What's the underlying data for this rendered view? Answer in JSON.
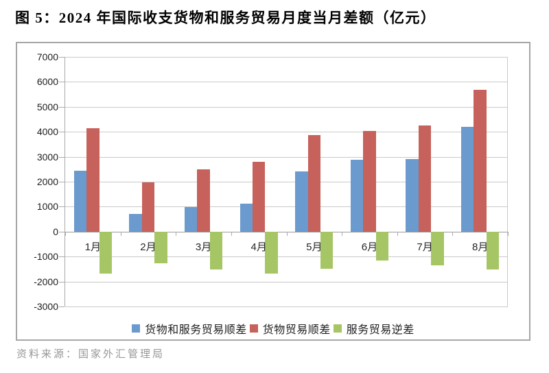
{
  "title": "图 5：2024 年国际收支货物和服务贸易月度当月差额（亿元）",
  "source": "资料来源：国家外汇管理局",
  "chart_data": {
    "type": "bar",
    "title": "图 5：2024 年国际收支货物和服务贸易月度当月差额（亿元）",
    "categories": [
      "1月",
      "2月",
      "3月",
      "4月",
      "5月",
      "6月",
      "7月",
      "8月"
    ],
    "series": [
      {
        "name": "货物和服务贸易顺差",
        "color": "#6a9ace",
        "values": [
          2446,
          720,
          985,
          1109,
          2399,
          2867,
          2911,
          4185
        ]
      },
      {
        "name": "货物贸易顺差",
        "color": "#c6615c",
        "values": [
          4130,
          1982,
          2492,
          2803,
          3881,
          4040,
          4259,
          5691
        ]
      },
      {
        "name": "服务贸易逆差",
        "color": "#a6c665",
        "values": [
          -1684,
          -1262,
          -1507,
          -1694,
          -1482,
          -1173,
          -1348,
          -1506
        ]
      }
    ],
    "ylim": [
      -3000,
      7000
    ],
    "ytick_step": 1000,
    "yticklabels": [
      "7000",
      "6000",
      "5000",
      "4000",
      "3000",
      "2000",
      "1000",
      "0",
      "-1000",
      "-2000",
      "-3000"
    ],
    "grid": true,
    "legend_position": "bottom"
  }
}
